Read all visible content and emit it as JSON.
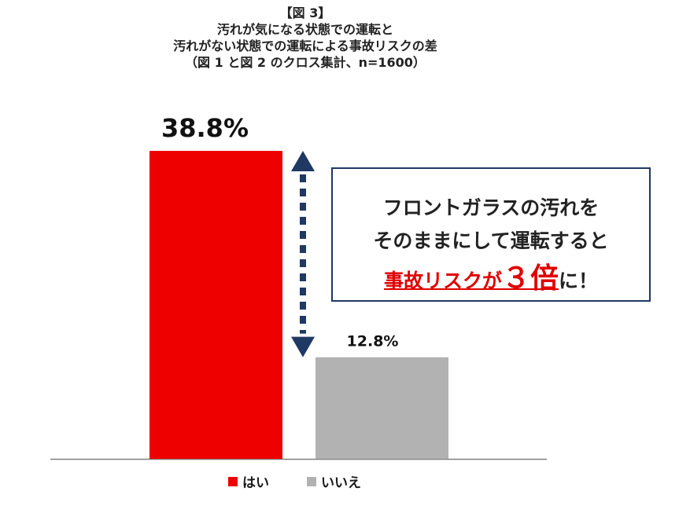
{
  "title": {
    "line1": "【図 3】",
    "line2": "汚れが気になる状態での運転と",
    "line3": "汚れがない状態での運転による事故リスクの差",
    "line4": "（図 1 と図 2 のクロス集計、n=1600）"
  },
  "callout": {
    "line1": "フロントガラスの汚れを",
    "line2": "そのままにして運転すると",
    "emph_prefix": "事故リスクが",
    "emph_number": "３",
    "emph_suffix": "倍",
    "tail": "に！"
  },
  "colors": {
    "yes": "#ee0000",
    "no": "#b2b2b2",
    "arrow": "#1f3864",
    "axis": "#7f7f7f"
  },
  "chart_data": {
    "type": "bar",
    "categories": [
      "はい",
      "いいえ"
    ],
    "values": [
      38.8,
      12.8
    ],
    "value_labels": [
      "38.8%",
      "12.8%"
    ],
    "legend": [
      "はい",
      "いいえ"
    ],
    "ylim": [
      0,
      45
    ],
    "grid": false,
    "legend_position": "bottom"
  }
}
